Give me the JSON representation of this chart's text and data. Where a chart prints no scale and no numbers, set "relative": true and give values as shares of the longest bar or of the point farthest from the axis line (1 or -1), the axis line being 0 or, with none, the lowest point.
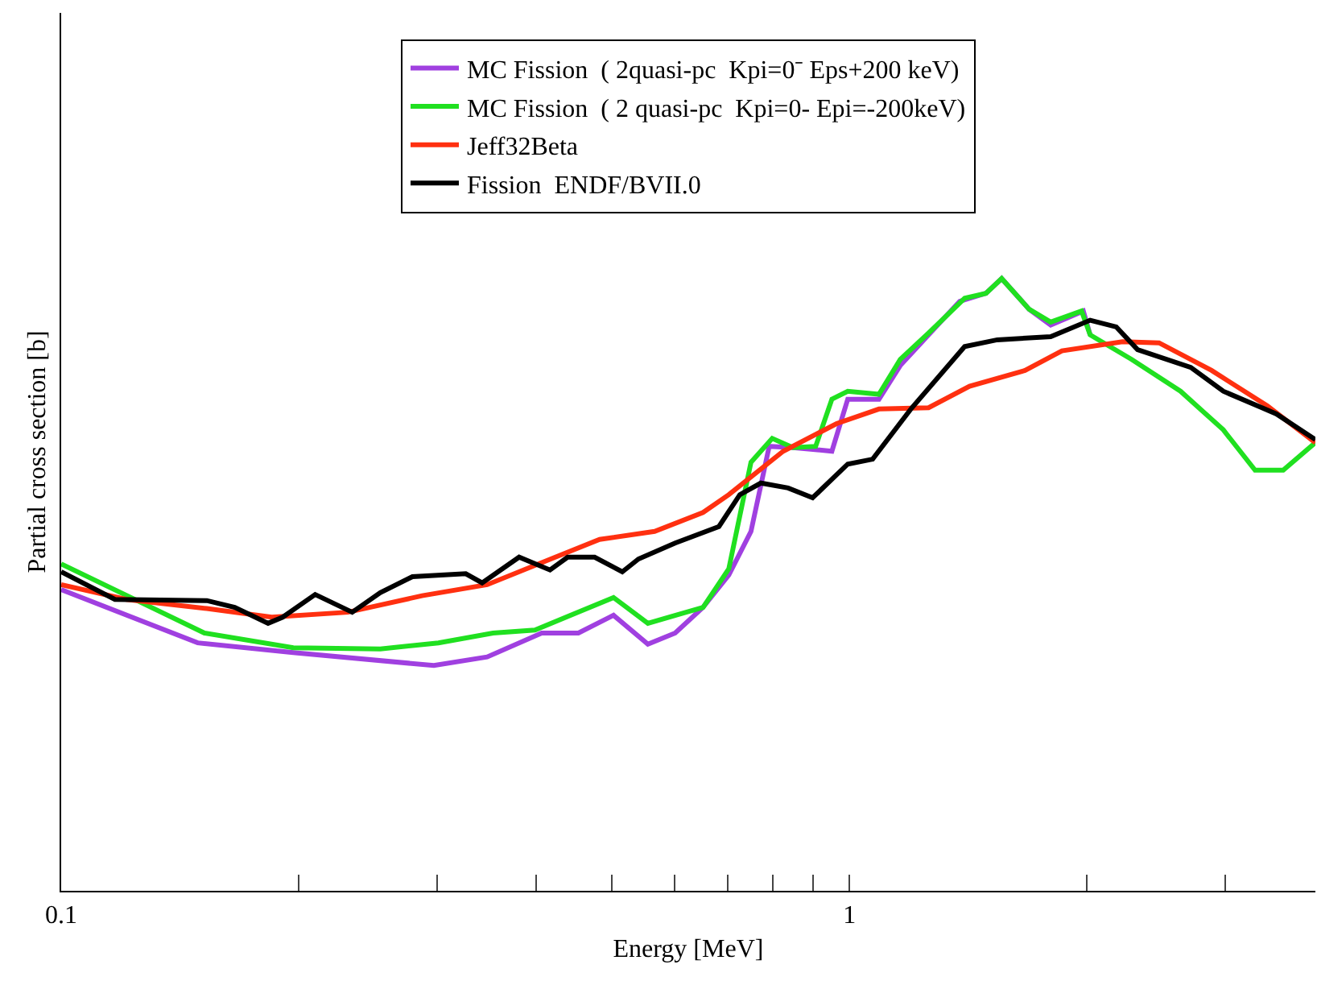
{
  "chart_data": {
    "type": "line",
    "relative": true,
    "log": "x",
    "xlabel": "Energy [MeV]",
    "ylabel": "Partial cross section [b]",
    "xlim": [
      0.1,
      3.9
    ],
    "xticks": [
      0.1,
      {
        "value": 0.2,
        "label": null
      },
      {
        "value": 0.3,
        "label": null
      },
      {
        "value": 0.4,
        "label": null
      },
      {
        "value": 0.5,
        "label": null
      },
      {
        "value": 0.6,
        "label": null
      },
      {
        "value": 0.7,
        "label": null
      },
      {
        "value": 0.8,
        "label": null
      },
      {
        "value": 0.9,
        "label": null
      },
      1,
      {
        "value": 2,
        "label": null
      },
      {
        "value": 3,
        "label": null
      }
    ],
    "grid": false,
    "legend": "top",
    "line_style": "solid",
    "marker": "none",
    "series": [
      {
        "name": "MC Fission  ( 2quasi-pc  Kpi=0⁻ Eps+200 keV)",
        "color": "#a040e0",
        "x": [
          0.1,
          0.149,
          0.197,
          0.297,
          0.347,
          0.407,
          0.453,
          0.502,
          0.555,
          0.601,
          0.652,
          0.703,
          0.75,
          0.791,
          0.848,
          0.95,
          0.995,
          1.09,
          1.16,
          1.26,
          1.38,
          1.49,
          1.56,
          1.69,
          1.8,
          1.98,
          2.02
        ],
        "values": [
          0.492,
          0.405,
          0.389,
          0.368,
          0.382,
          0.421,
          0.421,
          0.45,
          0.403,
          0.421,
          0.463,
          0.516,
          0.587,
          0.726,
          0.724,
          0.718,
          0.803,
          0.803,
          0.858,
          0.908,
          0.963,
          0.976,
          1.0,
          0.95,
          0.924,
          0.947,
          0.908
        ]
      },
      {
        "name": "MC Fission  ( 2 quasi-pc  Kpi=0- Epi=-200keV)",
        "color": "#20e020",
        "x": [
          0.1,
          0.152,
          0.197,
          0.254,
          0.301,
          0.353,
          0.399,
          0.502,
          0.555,
          0.652,
          0.703,
          0.75,
          0.798,
          0.848,
          0.906,
          0.95,
          0.995,
          1.09,
          1.16,
          1.26,
          1.4,
          1.49,
          1.56,
          1.69,
          1.8,
          1.97,
          2.02,
          2.28,
          2.63,
          2.98,
          3.27,
          3.55,
          3.9
        ],
        "values": [
          0.534,
          0.421,
          0.397,
          0.395,
          0.405,
          0.421,
          0.426,
          0.479,
          0.437,
          0.463,
          0.526,
          0.7,
          0.739,
          0.724,
          0.726,
          0.803,
          0.816,
          0.811,
          0.868,
          0.911,
          0.968,
          0.976,
          1.0,
          0.95,
          0.929,
          0.947,
          0.908,
          0.868,
          0.816,
          0.753,
          0.687,
          0.687,
          0.732
        ]
      },
      {
        "name": "Jeff32Beta",
        "color": "#ff3010",
        "x": [
          0.1,
          0.121,
          0.153,
          0.185,
          0.231,
          0.287,
          0.347,
          0.418,
          0.482,
          0.566,
          0.652,
          0.703,
          0.824,
          0.963,
          1.09,
          1.26,
          1.42,
          1.67,
          1.86,
          2.22,
          2.47,
          2.88,
          3.39,
          3.9
        ],
        "values": [
          0.5,
          0.476,
          0.461,
          0.447,
          0.455,
          0.482,
          0.5,
          0.542,
          0.574,
          0.587,
          0.618,
          0.647,
          0.718,
          0.763,
          0.787,
          0.789,
          0.824,
          0.85,
          0.882,
          0.897,
          0.895,
          0.85,
          0.792,
          0.732
        ]
      },
      {
        "name": "Fission  ENDF/BVII.0",
        "color": "#000000",
        "x": [
          0.1,
          0.117,
          0.153,
          0.166,
          0.183,
          0.191,
          0.21,
          0.234,
          0.254,
          0.279,
          0.326,
          0.342,
          0.381,
          0.417,
          0.439,
          0.475,
          0.515,
          0.54,
          0.601,
          0.683,
          0.726,
          0.772,
          0.836,
          0.898,
          0.995,
          1.07,
          1.2,
          1.4,
          1.54,
          1.8,
          2.02,
          2.18,
          2.32,
          2.71,
          2.98,
          3.48,
          3.9
        ],
        "values": [
          0.521,
          0.476,
          0.474,
          0.463,
          0.437,
          0.447,
          0.484,
          0.455,
          0.487,
          0.513,
          0.518,
          0.503,
          0.545,
          0.524,
          0.545,
          0.545,
          0.521,
          0.542,
          0.568,
          0.595,
          0.647,
          0.666,
          0.658,
          0.642,
          0.697,
          0.705,
          0.789,
          0.889,
          0.9,
          0.905,
          0.932,
          0.921,
          0.884,
          0.855,
          0.816,
          0.779,
          0.737
        ]
      }
    ]
  }
}
